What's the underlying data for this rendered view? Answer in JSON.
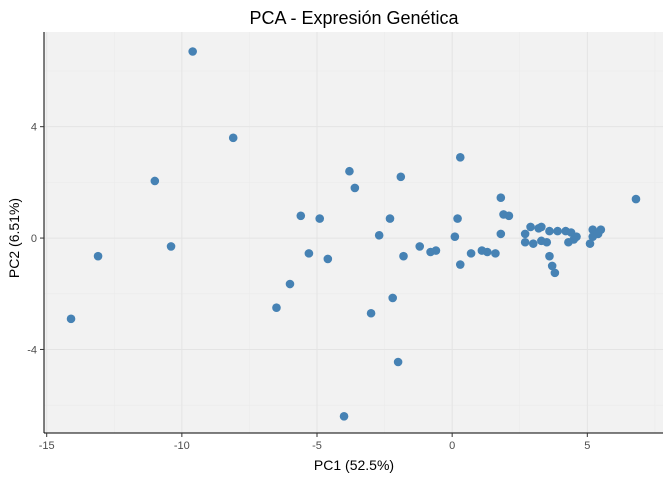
{
  "chart_data": {
    "type": "scatter",
    "title": "PCA - Expresión Genética",
    "xlabel": "PC1 (52.5%)",
    "ylabel": "PC2 (6.51%)",
    "xlim": [
      -15.1,
      7.8
    ],
    "ylim": [
      -7.0,
      7.4
    ],
    "xticks": [
      -15,
      -10,
      -5,
      0,
      5
    ],
    "yticks": [
      -4,
      0,
      4
    ],
    "grid": true,
    "legend": "none",
    "point_color": "#4682B4",
    "panel_color": "#F2F2F2",
    "grid_color": "#E4E4E4",
    "points": [
      {
        "x": -14.1,
        "y": -2.9
      },
      {
        "x": -13.1,
        "y": -0.65
      },
      {
        "x": -11.0,
        "y": 2.05
      },
      {
        "x": -10.4,
        "y": -0.3
      },
      {
        "x": -9.6,
        "y": 6.7
      },
      {
        "x": -8.1,
        "y": 3.6
      },
      {
        "x": -6.5,
        "y": -2.5
      },
      {
        "x": -6.0,
        "y": -1.65
      },
      {
        "x": -5.6,
        "y": 0.8
      },
      {
        "x": -5.3,
        "y": -0.55
      },
      {
        "x": -4.9,
        "y": 0.7
      },
      {
        "x": -4.6,
        "y": -0.75
      },
      {
        "x": -4.0,
        "y": -6.4
      },
      {
        "x": -3.8,
        "y": 2.4
      },
      {
        "x": -3.6,
        "y": 1.8
      },
      {
        "x": -3.0,
        "y": -2.7
      },
      {
        "x": -2.7,
        "y": 0.1
      },
      {
        "x": -2.3,
        "y": 0.7
      },
      {
        "x": -2.2,
        "y": -2.15
      },
      {
        "x": -2.0,
        "y": -4.45
      },
      {
        "x": -1.9,
        "y": 2.2
      },
      {
        "x": -1.8,
        "y": -0.65
      },
      {
        "x": -1.2,
        "y": -0.3
      },
      {
        "x": -0.8,
        "y": -0.5
      },
      {
        "x": -0.6,
        "y": -0.45
      },
      {
        "x": 0.1,
        "y": 0.05
      },
      {
        "x": 0.2,
        "y": 0.7
      },
      {
        "x": 0.3,
        "y": 2.9
      },
      {
        "x": 0.3,
        "y": -0.95
      },
      {
        "x": 0.7,
        "y": -0.55
      },
      {
        "x": 1.1,
        "y": -0.45
      },
      {
        "x": 1.3,
        "y": -0.5
      },
      {
        "x": 1.6,
        "y": -0.55
      },
      {
        "x": 1.8,
        "y": 1.45
      },
      {
        "x": 1.8,
        "y": 0.15
      },
      {
        "x": 1.9,
        "y": 0.85
      },
      {
        "x": 2.1,
        "y": 0.8
      },
      {
        "x": 2.7,
        "y": 0.15
      },
      {
        "x": 2.7,
        "y": -0.15
      },
      {
        "x": 2.9,
        "y": 0.4
      },
      {
        "x": 3.0,
        "y": -0.2
      },
      {
        "x": 3.2,
        "y": 0.35
      },
      {
        "x": 3.3,
        "y": 0.4
      },
      {
        "x": 3.3,
        "y": -0.1
      },
      {
        "x": 3.5,
        "y": -0.15
      },
      {
        "x": 3.6,
        "y": 0.25
      },
      {
        "x": 3.6,
        "y": -0.65
      },
      {
        "x": 3.7,
        "y": -1.0
      },
      {
        "x": 3.8,
        "y": -1.25
      },
      {
        "x": 3.9,
        "y": 0.25
      },
      {
        "x": 4.2,
        "y": 0.25
      },
      {
        "x": 4.3,
        "y": -0.15
      },
      {
        "x": 4.4,
        "y": 0.2
      },
      {
        "x": 4.5,
        "y": -0.05
      },
      {
        "x": 4.6,
        "y": 0.05
      },
      {
        "x": 5.1,
        "y": -0.2
      },
      {
        "x": 5.2,
        "y": 0.05
      },
      {
        "x": 5.2,
        "y": 0.3
      },
      {
        "x": 5.4,
        "y": 0.15
      },
      {
        "x": 5.5,
        "y": 0.3
      },
      {
        "x": 6.8,
        "y": 1.4
      }
    ]
  }
}
